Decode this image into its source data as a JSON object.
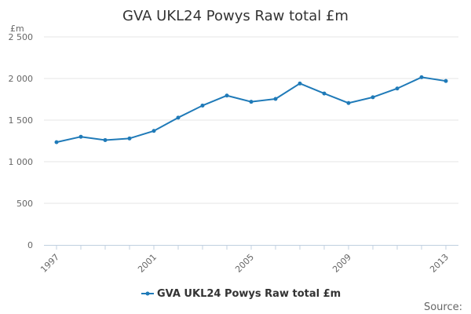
{
  "chart_data": {
    "type": "line",
    "title": "GVA UKL24 Powys Raw total £m",
    "unit_label": "£m",
    "source_label": "Source:",
    "x": [
      1997,
      1998,
      1999,
      2000,
      2001,
      2002,
      2003,
      2004,
      2005,
      2006,
      2007,
      2008,
      2009,
      2010,
      2011,
      2012,
      2013
    ],
    "x_tick_labels": [
      "1997",
      "2001",
      "2005",
      "2009",
      "2013"
    ],
    "x_tick_values": [
      1997,
      2001,
      2005,
      2009,
      2013
    ],
    "y_tick_labels": [
      "0",
      "500",
      "1 000",
      "1 500",
      "2 000",
      "2 500"
    ],
    "y_tick_values": [
      0,
      500,
      1000,
      1500,
      2000,
      2500
    ],
    "ylim": [
      0,
      2500
    ],
    "xlim": [
      1997,
      2013
    ],
    "series": [
      {
        "name": "GVA UKL24 Powys Raw total £m",
        "color": "#1f7ab8",
        "values": [
          1235,
          1300,
          1260,
          1280,
          1370,
          1530,
          1675,
          1795,
          1720,
          1755,
          1940,
          1820,
          1705,
          1775,
          1880,
          2015,
          1970
        ]
      }
    ],
    "legend_position": "bottom-center",
    "grid": true
  }
}
